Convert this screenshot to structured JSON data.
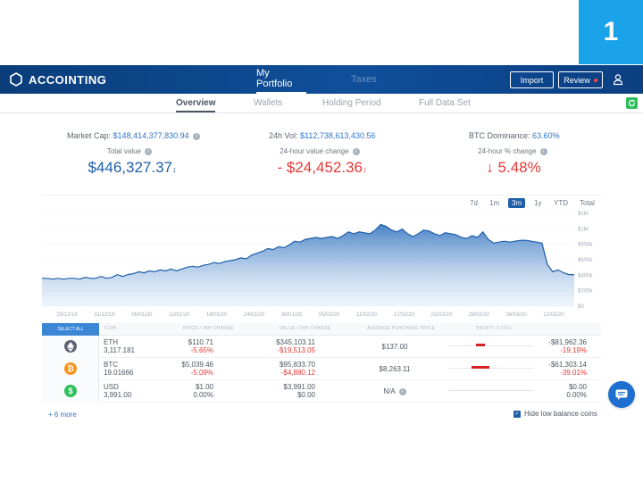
{
  "step_badge": "1",
  "app": {
    "logo_text": "ACCOINTING",
    "tabs": [
      {
        "label": "My Portfolio",
        "active": true
      },
      {
        "label": "Taxes",
        "active": false
      }
    ],
    "import_label": "Import",
    "review_label": "Review",
    "user_icon": "user-icon"
  },
  "subnav": {
    "items": [
      {
        "label": "Overview",
        "active": true
      },
      {
        "label": "Wallets",
        "active": false
      },
      {
        "label": "Holding Period",
        "active": false
      },
      {
        "label": "Full Data Set",
        "active": false
      }
    ],
    "refresh_icon": "refresh-icon"
  },
  "market": {
    "market_cap_label": "Market Cap:",
    "market_cap_value": "$148,414,377,830.94",
    "vol_label": "24h Vol:",
    "vol_value": "$112,738,613,430.56",
    "dominance_label": "BTC Dominance:",
    "dominance_value": "63.60%"
  },
  "kpis": {
    "total_label": "Total value",
    "total_value": "$446,327.37",
    "change_label": "24-hour value change",
    "change_value": "- $24,452.36",
    "pct_label": "24-hour % change",
    "pct_value": "5.48%",
    "colors": {
      "positive": "#1e5fa8",
      "negative": "#e53935"
    }
  },
  "chart": {
    "ranges": [
      {
        "label": "7d",
        "active": false
      },
      {
        "label": "1m",
        "active": false
      },
      {
        "label": "3m",
        "active": true
      },
      {
        "label": "1y",
        "active": false
      },
      {
        "label": "YTD",
        "active": false
      },
      {
        "label": "Total",
        "active": false
      }
    ],
    "x_ticks": [
      "25/12/19",
      "31/12/19",
      "06/01/20",
      "12/01/20",
      "18/01/20",
      "24/01/20",
      "30/01/20",
      "05/02/20",
      "11/02/20",
      "17/02/20",
      "23/02/20",
      "29/02/20",
      "06/03/20",
      "12/03/20"
    ],
    "y_ticks": [
      "$1M",
      "$1M",
      "$800k",
      "$600k",
      "$400k",
      "$200k",
      "$0"
    ],
    "series": [
      0.3,
      0.3,
      0.29,
      0.3,
      0.29,
      0.3,
      0.3,
      0.29,
      0.31,
      0.3,
      0.3,
      0.32,
      0.3,
      0.31,
      0.34,
      0.32,
      0.34,
      0.35,
      0.37,
      0.36,
      0.38,
      0.37,
      0.39,
      0.38,
      0.4,
      0.38,
      0.4,
      0.42,
      0.43,
      0.42,
      0.44,
      0.45,
      0.47,
      0.46,
      0.48,
      0.49,
      0.5,
      0.52,
      0.51,
      0.55,
      0.57,
      0.59,
      0.62,
      0.61,
      0.64,
      0.63,
      0.66,
      0.7,
      0.69,
      0.72,
      0.73,
      0.74,
      0.73,
      0.74,
      0.75,
      0.73,
      0.76,
      0.8,
      0.78,
      0.8,
      0.79,
      0.78,
      0.82,
      0.88,
      0.86,
      0.82,
      0.8,
      0.83,
      0.78,
      0.75,
      0.78,
      0.82,
      0.81,
      0.78,
      0.76,
      0.79,
      0.78,
      0.77,
      0.74,
      0.73,
      0.76,
      0.74,
      0.8,
      0.72,
      0.68,
      0.69,
      0.7,
      0.69,
      0.7,
      0.71,
      0.71,
      0.7,
      0.69,
      0.68,
      0.45,
      0.37,
      0.39,
      0.36,
      0.34,
      0.34
    ],
    "line_color": "#1f5fa8"
  },
  "table": {
    "select_all_label": "SELECT ALL",
    "headers": [
      "COIN",
      "PRICE / 24H CHANGE",
      "VALUE / 24H CHANGE",
      "AVERAGE PURCHASE PRICE",
      "PROFIT / LOSS"
    ],
    "rows": [
      {
        "symbol": "ETH",
        "amount": "3,117.181",
        "price": "$110.71",
        "price_change": "-5.65%",
        "value": "$345,103.11",
        "value_change": "-$19,513.05",
        "avg_price": "$137.00",
        "pl": "-$81,962.36",
        "pl_pct": "-19.19%",
        "icon": "ethereum-icon",
        "icon_color": "#5a6370",
        "bar_fill": 0.19
      },
      {
        "symbol": "BTC",
        "amount": "19.01666",
        "price": "$5,039.46",
        "price_change": "-5.09%",
        "value": "$95,833.70",
        "value_change": "-$4,880.12",
        "avg_price": "$8,263.11",
        "pl": "-$61,303.14",
        "pl_pct": "-39.01%",
        "icon": "bitcoin-icon",
        "icon_color": "#f7931a",
        "bar_fill": 0.39
      },
      {
        "symbol": "USD",
        "amount": "3,991.00",
        "price": "$1.00",
        "price_change": "0.00%",
        "value": "$3,991.00",
        "value_change": "$0.00",
        "avg_price": "N/A",
        "pl": "$0.00",
        "pl_pct": "0.00%",
        "icon": "dollar-icon",
        "icon_color": "#2fbf5a",
        "bar_fill": 0
      }
    ],
    "more_label": "+ 6 more",
    "hide_label": "Hide low balance coins"
  },
  "chat_icon": "chat-icon"
}
